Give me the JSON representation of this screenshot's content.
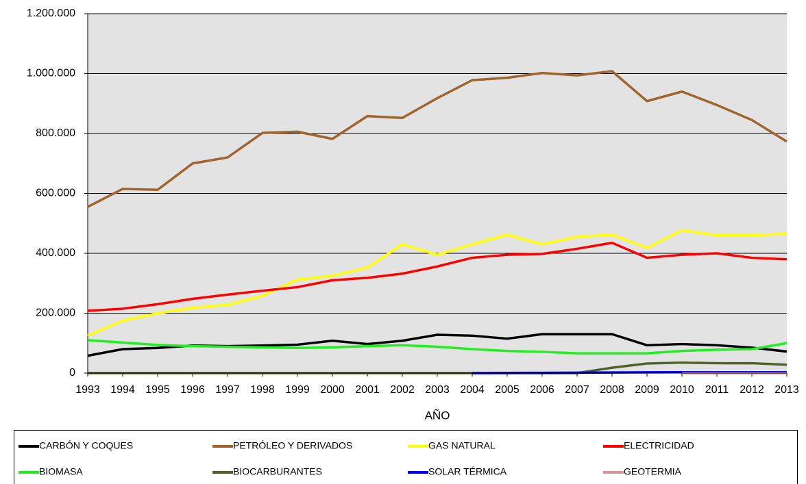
{
  "chart_data": {
    "type": "line",
    "x_label": "AÑO",
    "categories": [
      "1993",
      "1994",
      "1995",
      "1996",
      "1997",
      "1998",
      "1999",
      "2000",
      "2001",
      "2002",
      "2003",
      "2004",
      "2005",
      "2006",
      "2007",
      "2008",
      "2009",
      "2010",
      "2011",
      "2012",
      "2013"
    ],
    "ylim": [
      0,
      1200000
    ],
    "yticks": [
      0,
      {
        "value": 200000,
        "label": "200.000"
      },
      {
        "value": 400000,
        "label": "400.000"
      },
      {
        "value": 600000,
        "label": "600.000"
      },
      {
        "value": 800000,
        "label": "800.000"
      },
      {
        "value": 1000000,
        "label": "1.000.000"
      },
      {
        "value": 1200000,
        "label": "1.200.000"
      }
    ],
    "grid": true,
    "legend": "bottom",
    "series": [
      {
        "name": "CARBÓN Y COQUES",
        "color": "#000000",
        "values": [
          58000,
          80000,
          84000,
          92000,
          90000,
          92000,
          95000,
          108000,
          97000,
          108000,
          128000,
          125000,
          115000,
          130000,
          130000,
          130000,
          93000,
          97000,
          93000,
          85000,
          72000
        ]
      },
      {
        "name": "PETRÓLEO Y DERIVADOS",
        "color": "#a0642e",
        "values": [
          555000,
          615000,
          612000,
          700000,
          720000,
          802000,
          806000,
          782000,
          858000,
          852000,
          918000,
          978000,
          986000,
          1002000,
          994000,
          1008000,
          908000,
          940000,
          895000,
          845000,
          773000
        ]
      },
      {
        "name": "GAS NATURAL",
        "color": "#ffff00",
        "values": [
          125000,
          175000,
          200000,
          218000,
          228000,
          258000,
          312000,
          325000,
          352000,
          430000,
          395000,
          430000,
          462000,
          430000,
          455000,
          462000,
          418000,
          477000,
          460000,
          460000,
          465000
        ]
      },
      {
        "name": "ELECTRICIDAD",
        "color": "#ff0000",
        "values": [
          208000,
          215000,
          230000,
          248000,
          262000,
          275000,
          287000,
          310000,
          318000,
          332000,
          356000,
          385000,
          395000,
          398000,
          415000,
          435000,
          385000,
          395000,
          400000,
          385000,
          380000
        ]
      },
      {
        "name": "BIOMASA",
        "color": "#22ee22",
        "values": [
          110000,
          102000,
          94000,
          90000,
          88000,
          86000,
          84000,
          86000,
          90000,
          93000,
          88000,
          80000,
          74000,
          71000,
          66000,
          66000,
          66000,
          74000,
          78000,
          80000,
          100000
        ]
      },
      {
        "name": "BIOCARBURANTES",
        "color": "#4f6228",
        "values": [
          0,
          0,
          0,
          0,
          0,
          0,
          0,
          0,
          0,
          0,
          0,
          0,
          0,
          0,
          0,
          18000,
          32000,
          35000,
          33000,
          33000,
          28000
        ]
      },
      {
        "name": "SOLAR TÉRMICA",
        "color": "#0000ff",
        "values": [
          null,
          null,
          null,
          null,
          null,
          null,
          null,
          null,
          null,
          null,
          null,
          0,
          500,
          1000,
          1500,
          2000,
          2500,
          3000,
          3000,
          3000,
          3000
        ]
      },
      {
        "name": "GEOTERMIA",
        "color": "#d99594",
        "values": [
          null,
          null,
          null,
          null,
          null,
          null,
          null,
          null,
          null,
          null,
          null,
          null,
          null,
          null,
          null,
          null,
          null,
          0,
          0,
          0,
          0
        ]
      }
    ]
  }
}
